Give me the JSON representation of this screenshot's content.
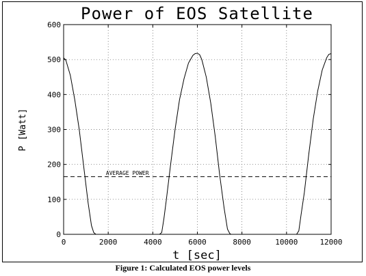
{
  "caption": "Figure 1: Calculated EOS power levels",
  "chart_data": {
    "type": "line",
    "title": "Power of EOS Satellite",
    "xlabel": "t [sec]",
    "ylabel": "P [Watt]",
    "xlim": [
      0,
      12000
    ],
    "ylim": [
      0,
      600
    ],
    "x_ticks": [
      0,
      2000,
      4000,
      6000,
      8000,
      10000,
      12000
    ],
    "y_ticks": [
      0,
      100,
      200,
      300,
      400,
      500,
      600
    ],
    "grid": true,
    "series": [
      {
        "style": "solid",
        "x": [
          0,
          100,
          300,
          500,
          700,
          900,
          1100,
          1250,
          1350,
          1450,
          4300,
          4400,
          4500,
          4600,
          4800,
          5000,
          5200,
          5400,
          5600,
          5800,
          5900,
          6000,
          6100,
          6200,
          6400,
          6600,
          6800,
          7000,
          7200,
          7350,
          7450,
          7500,
          10450,
          10550,
          10650,
          10800,
          11000,
          11200,
          11400,
          11600,
          11800,
          11900,
          12000
        ],
        "y": [
          505,
          498,
          455,
          385,
          300,
          195,
          90,
          25,
          5,
          0,
          0,
          5,
          45,
          95,
          200,
          300,
          385,
          445,
          490,
          512,
          517,
          518,
          514,
          500,
          450,
          375,
          280,
          170,
          75,
          15,
          3,
          0,
          0,
          10,
          55,
          120,
          230,
          330,
          410,
          470,
          505,
          515,
          517
        ]
      },
      {
        "name": "AVERAGE POWER",
        "style": "dashed",
        "x": [
          0,
          12000
        ],
        "y": [
          165,
          165
        ]
      }
    ],
    "annotations": [
      {
        "text": "AVERAGE POWER",
        "x": 1900,
        "y": 168
      }
    ]
  }
}
